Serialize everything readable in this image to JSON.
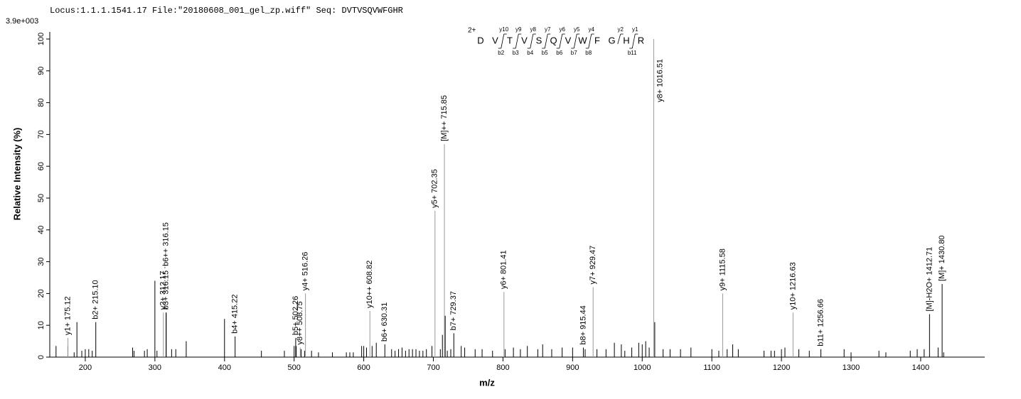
{
  "chart_data": {
    "type": "spectrum",
    "title": "Locus:1.1.1.1541.17 File:\"20180608_001_gel_zp.wiff\"   Seq: DVTVSQVWFGHR",
    "scale_label": "3.9e+003",
    "xlabel": "m/z",
    "ylabel": "Relative   Intensity (%)",
    "xlim": [
      149,
      1492
    ],
    "ylim": [
      0,
      101
    ],
    "xticks": [
      200,
      300,
      400,
      500,
      600,
      700,
      800,
      900,
      1000,
      1100,
      1200,
      1300,
      1400
    ],
    "yticks": [
      0,
      10,
      20,
      30,
      40,
      50,
      60,
      70,
      80,
      90,
      100
    ],
    "peak_color": "#000000",
    "peaks": {
      "x": [
        158,
        175,
        184,
        188,
        195,
        200,
        205,
        210,
        268,
        270,
        285,
        289,
        300,
        303,
        324,
        330,
        345,
        400,
        453,
        486,
        500,
        503,
        510,
        515,
        525,
        535,
        555,
        575,
        580,
        585,
        597,
        600,
        604,
        612,
        618,
        640,
        645,
        650,
        655,
        660,
        665,
        670,
        675,
        680,
        685,
        690,
        698,
        710,
        713,
        717,
        720,
        725,
        740,
        745,
        760,
        770,
        785,
        803,
        815,
        825,
        835,
        850,
        857,
        870,
        885,
        900,
        918,
        935,
        948,
        960,
        970,
        975,
        985,
        995,
        1000,
        1005,
        1010,
        1018,
        1030,
        1040,
        1055,
        1070,
        1100,
        1110,
        1122,
        1130,
        1138,
        1175,
        1185,
        1190,
        1200,
        1205,
        1225,
        1240,
        1290,
        1300,
        1340,
        1350,
        1385,
        1395,
        1405,
        1425,
        1433
      ],
      "values": [
        3.5,
        3.5,
        1.5,
        11,
        2,
        2.5,
        2.5,
        2,
        3,
        2,
        2,
        2.5,
        24,
        2,
        2.5,
        2.5,
        5,
        12,
        2,
        2,
        3.5,
        3.5,
        2.5,
        2,
        2,
        1.5,
        1.5,
        1.5,
        1.5,
        1.5,
        3.5,
        3.5,
        3,
        3.5,
        4.5,
        2.5,
        2,
        2.5,
        3,
        2,
        2.5,
        2.5,
        2.5,
        2,
        2,
        2.5,
        3.5,
        2.5,
        7,
        13,
        2,
        2.5,
        3.5,
        3,
        2.5,
        2.5,
        2,
        2.5,
        3,
        2.5,
        3.5,
        2.5,
        4,
        2.5,
        3,
        3,
        2.5,
        2.5,
        2.5,
        4.5,
        4,
        2,
        3,
        4.5,
        4,
        5,
        3,
        11,
        2.5,
        2.5,
        2.5,
        3,
        2.5,
        2,
        2.5,
        4,
        2.5,
        2,
        2,
        2,
        2.5,
        3,
        2.5,
        2,
        2.5,
        1.5,
        2,
        1.5,
        2,
        2.5,
        2.5,
        3,
        1.5
      ]
    },
    "annotations": {
      "x": [
        175.12,
        215.1,
        312.17,
        316.15,
        316.15,
        415.22,
        502.26,
        508.75,
        516.26,
        608.82,
        630.31,
        702.35,
        715.85,
        729.37,
        801.41,
        915.44,
        929.47,
        1016.51,
        1115.58,
        1216.63,
        1256.66,
        1412.71,
        1430.8
      ],
      "values": [
        6,
        11,
        14,
        14,
        14,
        6.5,
        6,
        3,
        20,
        14.5,
        4,
        46,
        67,
        7.5,
        20.5,
        3,
        22,
        100,
        20,
        14,
        2.5,
        13.5,
        23
      ],
      "labels": [
        "y1+ 175.12",
        "b2+ 215.10",
        "y2+ 312.17 ..",
        "b3+ 316.15",
        "b6++ 316.15",
        "b4+ 415.22",
        "b5+ 502.26",
        "y8++ 508.75",
        "y4+ 516.26",
        "y10++ 608.82",
        "b6+ 630.31",
        "y5+ 702.35",
        "[M]++ 715.85",
        "b7+ 729.37",
        "y6+ 801.41",
        "b8+ 915.44",
        "y7+ 929.47",
        "y8+ 1016.51",
        "y9+ 1115.58",
        "y10+ 1216.63",
        "b11+ 1256.66",
        "[M]-H2O+ 1412.71",
        "[M]+ 1430.80"
      ],
      "colors": [
        "#999999",
        "#000000",
        "#999999",
        "#000000",
        "#000000",
        "#000000",
        "#000000",
        "#999999",
        "#999999",
        "#999999",
        "#000000",
        "#999999",
        "#999999",
        "#000000",
        "#999999",
        "#000000",
        "#999999",
        "#999999",
        "#999999",
        "#999999",
        "#000000",
        "#000000",
        "#000000"
      ]
    }
  },
  "sequence": {
    "charge": "2+",
    "residues": [
      "D",
      "V",
      "T",
      "V",
      "S",
      "Q",
      "V",
      "W",
      "F",
      "G",
      "H",
      "R"
    ],
    "y_ions": [
      null,
      "y10",
      "y9",
      "y8",
      "y7",
      "y6",
      "y5",
      "y4",
      null,
      "y2",
      "y1"
    ],
    "b_ions": [
      null,
      "b2",
      "b3",
      "b4",
      "b5",
      "b6",
      "b7",
      "b8",
      null,
      null,
      "b11"
    ]
  }
}
